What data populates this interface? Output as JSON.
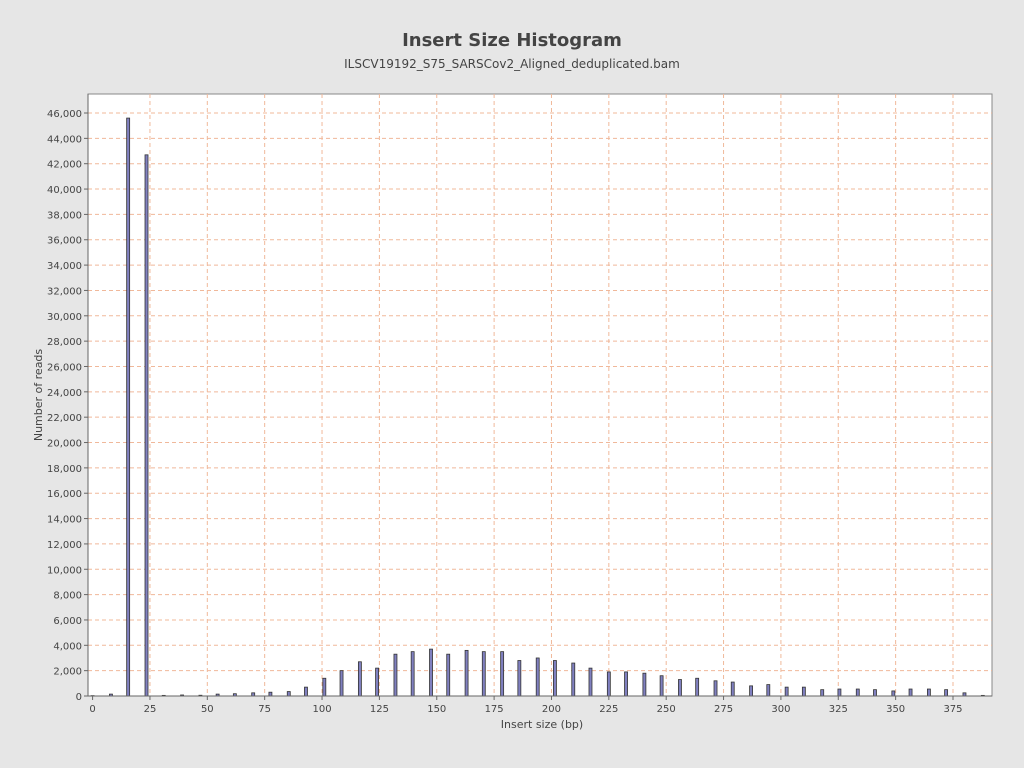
{
  "chart_data": {
    "type": "bar",
    "title": "Insert Size Histogram",
    "subtitle": "ILSCV19192_S75_SARSCov2_Aligned_deduplicated.bam",
    "xlabel": "Insert size (bp)",
    "ylabel": "Number of reads",
    "xlim": [
      -2,
      392
    ],
    "ylim": [
      0,
      47500
    ],
    "xticks": [
      0,
      25,
      50,
      75,
      100,
      125,
      150,
      175,
      200,
      225,
      250,
      275,
      300,
      325,
      350,
      375
    ],
    "yticks": [
      0,
      2000,
      4000,
      6000,
      8000,
      10000,
      12000,
      14000,
      16000,
      18000,
      20000,
      22000,
      24000,
      26000,
      28000,
      30000,
      32000,
      34000,
      36000,
      38000,
      40000,
      42000,
      44000,
      46000
    ],
    "grid": true,
    "legend": "none",
    "colors": {
      "bar_fill": "#8080c0",
      "bar_edge": "#333333",
      "grid": "#f0b89a",
      "plot_bg": "#ffffff",
      "page_bg": "#e6e6e6"
    },
    "x": [
      0,
      8,
      15.5,
      23.5,
      31,
      39,
      47,
      54.5,
      62,
      70,
      77.5,
      85.5,
      93,
      101,
      108.5,
      116.5,
      124,
      132,
      139.5,
      147.5,
      155,
      163,
      170.5,
      178.5,
      186,
      194,
      201.5,
      209.5,
      217,
      225,
      232.5,
      240.5,
      248,
      256,
      263.5,
      271.5,
      279,
      287,
      294.5,
      302.5,
      310,
      318,
      325.5,
      333.5,
      341,
      349,
      356.5,
      364.5,
      372,
      380,
      388
    ],
    "values": [
      30,
      150,
      45600,
      42700,
      50,
      80,
      60,
      150,
      180,
      250,
      300,
      350,
      700,
      1400,
      2000,
      2700,
      2200,
      3300,
      3500,
      3700,
      3300,
      3600,
      3500,
      3500,
      2800,
      3000,
      2800,
      2600,
      2200,
      1900,
      1900,
      1800,
      1600,
      1300,
      1400,
      1200,
      1100,
      800,
      900,
      700,
      700,
      500,
      550,
      550,
      500,
      400,
      550,
      550,
      500,
      250,
      50
    ]
  }
}
